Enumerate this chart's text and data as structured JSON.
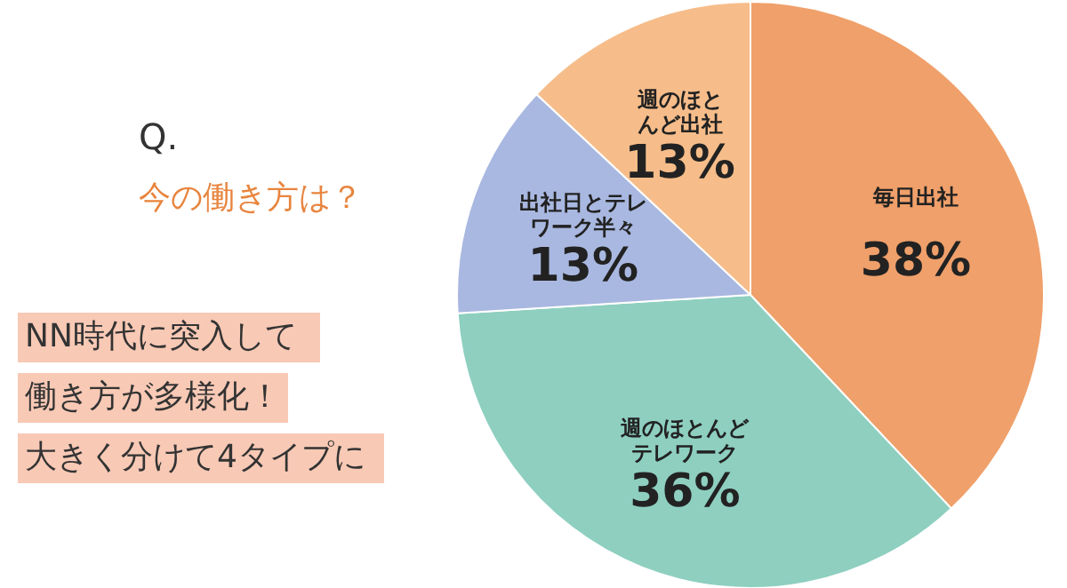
{
  "chart_data": {
    "type": "pie",
    "title": "Q.",
    "subtitle": "今の働き方は？",
    "categories": [
      "毎日出社",
      "週のほとんどテレワーク",
      "出社日とテレワーク半々",
      "週のほとんど出社"
    ],
    "values": [
      38,
      36,
      13,
      13
    ],
    "colors": [
      "#f0a06a",
      "#8ecfc0",
      "#a9b8e0",
      "#f6bd8a"
    ],
    "value_labels": [
      "38%",
      "36%",
      "13%",
      "13%"
    ],
    "annotations": [
      "NN時代に突入して",
      "働き方が多様化！",
      "大きく分けて4タイプに"
    ]
  }
}
